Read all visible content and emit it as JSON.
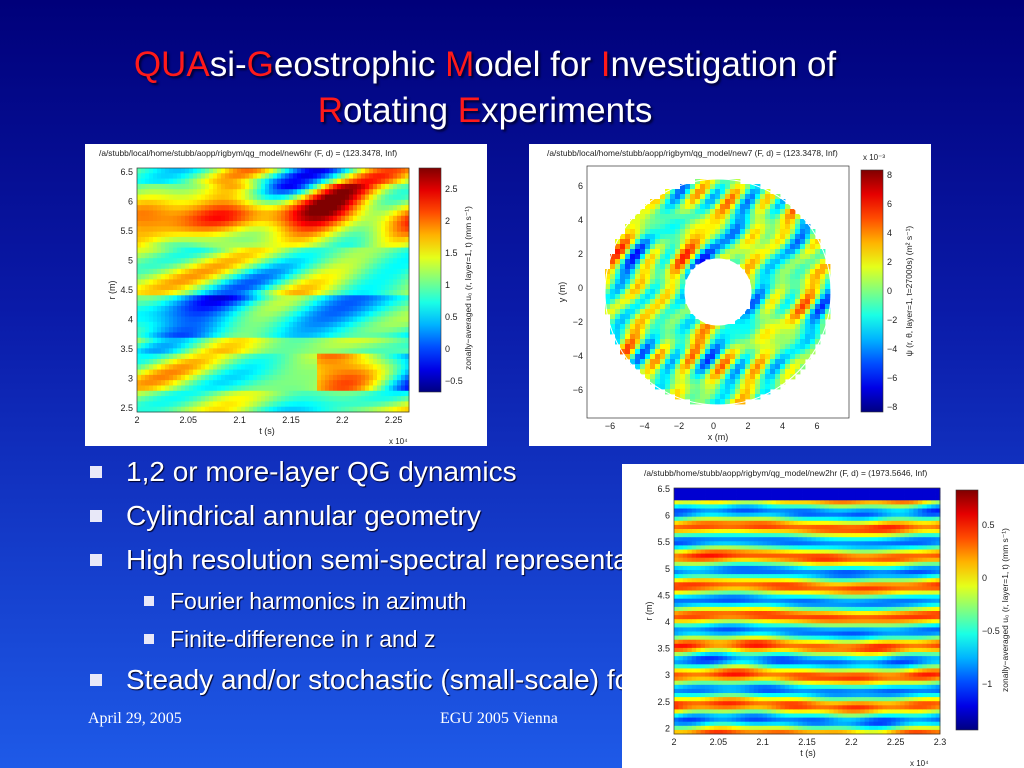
{
  "slide": {
    "title": {
      "line1": [
        {
          "t": "QUA",
          "red": true
        },
        {
          "t": "si-",
          "red": false
        },
        {
          "t": "G",
          "red": true
        },
        {
          "t": "eostrophic ",
          "red": false
        },
        {
          "t": "M",
          "red": true
        },
        {
          "t": "odel for ",
          "red": false
        },
        {
          "t": "I",
          "red": true
        },
        {
          "t": "nvestigation of",
          "red": false
        }
      ],
      "line2": [
        {
          "t": "R",
          "red": true
        },
        {
          "t": "otating ",
          "red": false
        },
        {
          "t": "E",
          "red": true
        },
        {
          "t": "xperiments",
          "red": false
        }
      ]
    },
    "bullets": [
      {
        "level": 1,
        "text": "1,2 or more-layer QG dynamics"
      },
      {
        "level": 1,
        "text": "Cylindrical annular geometry"
      },
      {
        "level": 1,
        "text": "High resolution semi-spectral representation"
      },
      {
        "level": 2,
        "text": "Fourier harmonics in azimuth"
      },
      {
        "level": 2,
        "text": "Finite-difference in r and z"
      },
      {
        "level": 1,
        "text": "Steady and/or stochastic (small-scale) forcing"
      }
    ],
    "footer": {
      "date": "April 29, 2005",
      "event": "EGU 2005 Vienna"
    },
    "colors": {
      "accent": "#ff1a1a",
      "text": "#ffffff",
      "bg_top": "#00007a",
      "bg_bottom": "#1e5ae8"
    }
  },
  "figures": [
    {
      "id": "hovmoller-6hr",
      "header": "/a/stubb/local/home/stubb/aopp/rigbym/qg_model/new6hr   (F, d) = (123.3478, Inf)",
      "xlabel": "t (s)",
      "xscale": "x 10⁴",
      "xticks": [
        "2",
        "2.05",
        "2.1",
        "2.15",
        "2.2",
        "2.25"
      ],
      "ylabel": "r (m)",
      "yticks": [
        "6.5",
        "6",
        "5.5",
        "5",
        "4.5",
        "4",
        "3.5",
        "3",
        "2.5"
      ],
      "cbar_label": "zonally−averaged u₀ (r, layer=1, t)   (mm s⁻¹)",
      "cbar_ticks": [
        "2.5",
        "2",
        "1.5",
        "1",
        "0.5",
        "0",
        "−0.5"
      ]
    },
    {
      "id": "annulus-new7",
      "header": "/a/stubb/local/home/stubb/aopp/rigbym/qg_model/new7   (F, d) = (123.3478, Inf)",
      "xlabel": "x (m)",
      "xticks": [
        "−6",
        "−4",
        "−2",
        "0",
        "2",
        "4",
        "6"
      ],
      "ylabel": "y (m)",
      "yticks": [
        "6",
        "4",
        "2",
        "0",
        "−2",
        "−4",
        "−6"
      ],
      "cbar_label": "ψ (r, θ, layer=1, t=27000s)   (m² s⁻¹)",
      "cbar_scale": "x 10⁻³",
      "cbar_ticks": [
        "8",
        "6",
        "4",
        "2",
        "0",
        "−2",
        "−4",
        "−6",
        "−8"
      ]
    },
    {
      "id": "hovmoller-new2hr",
      "header": "/a/stubb/home/stubb/aopp/rigbym/qg_model/new2hr   (F, d) = (1973.5646, Inf)",
      "xlabel": "t (s)",
      "xscale": "x 10⁴",
      "xticks": [
        "2",
        "2.05",
        "2.1",
        "2.15",
        "2.2",
        "2.25",
        "2.3"
      ],
      "ylabel": "r (m)",
      "yticks": [
        "6.5",
        "6",
        "5.5",
        "5",
        "4.5",
        "4",
        "3.5",
        "3",
        "2.5",
        "2"
      ],
      "cbar_label": "zonally−averaged u₀ (r, layer=1, t)   (mm s⁻¹)",
      "cbar_ticks": [
        "0.5",
        "0",
        "−0.5",
        "−1"
      ]
    }
  ]
}
